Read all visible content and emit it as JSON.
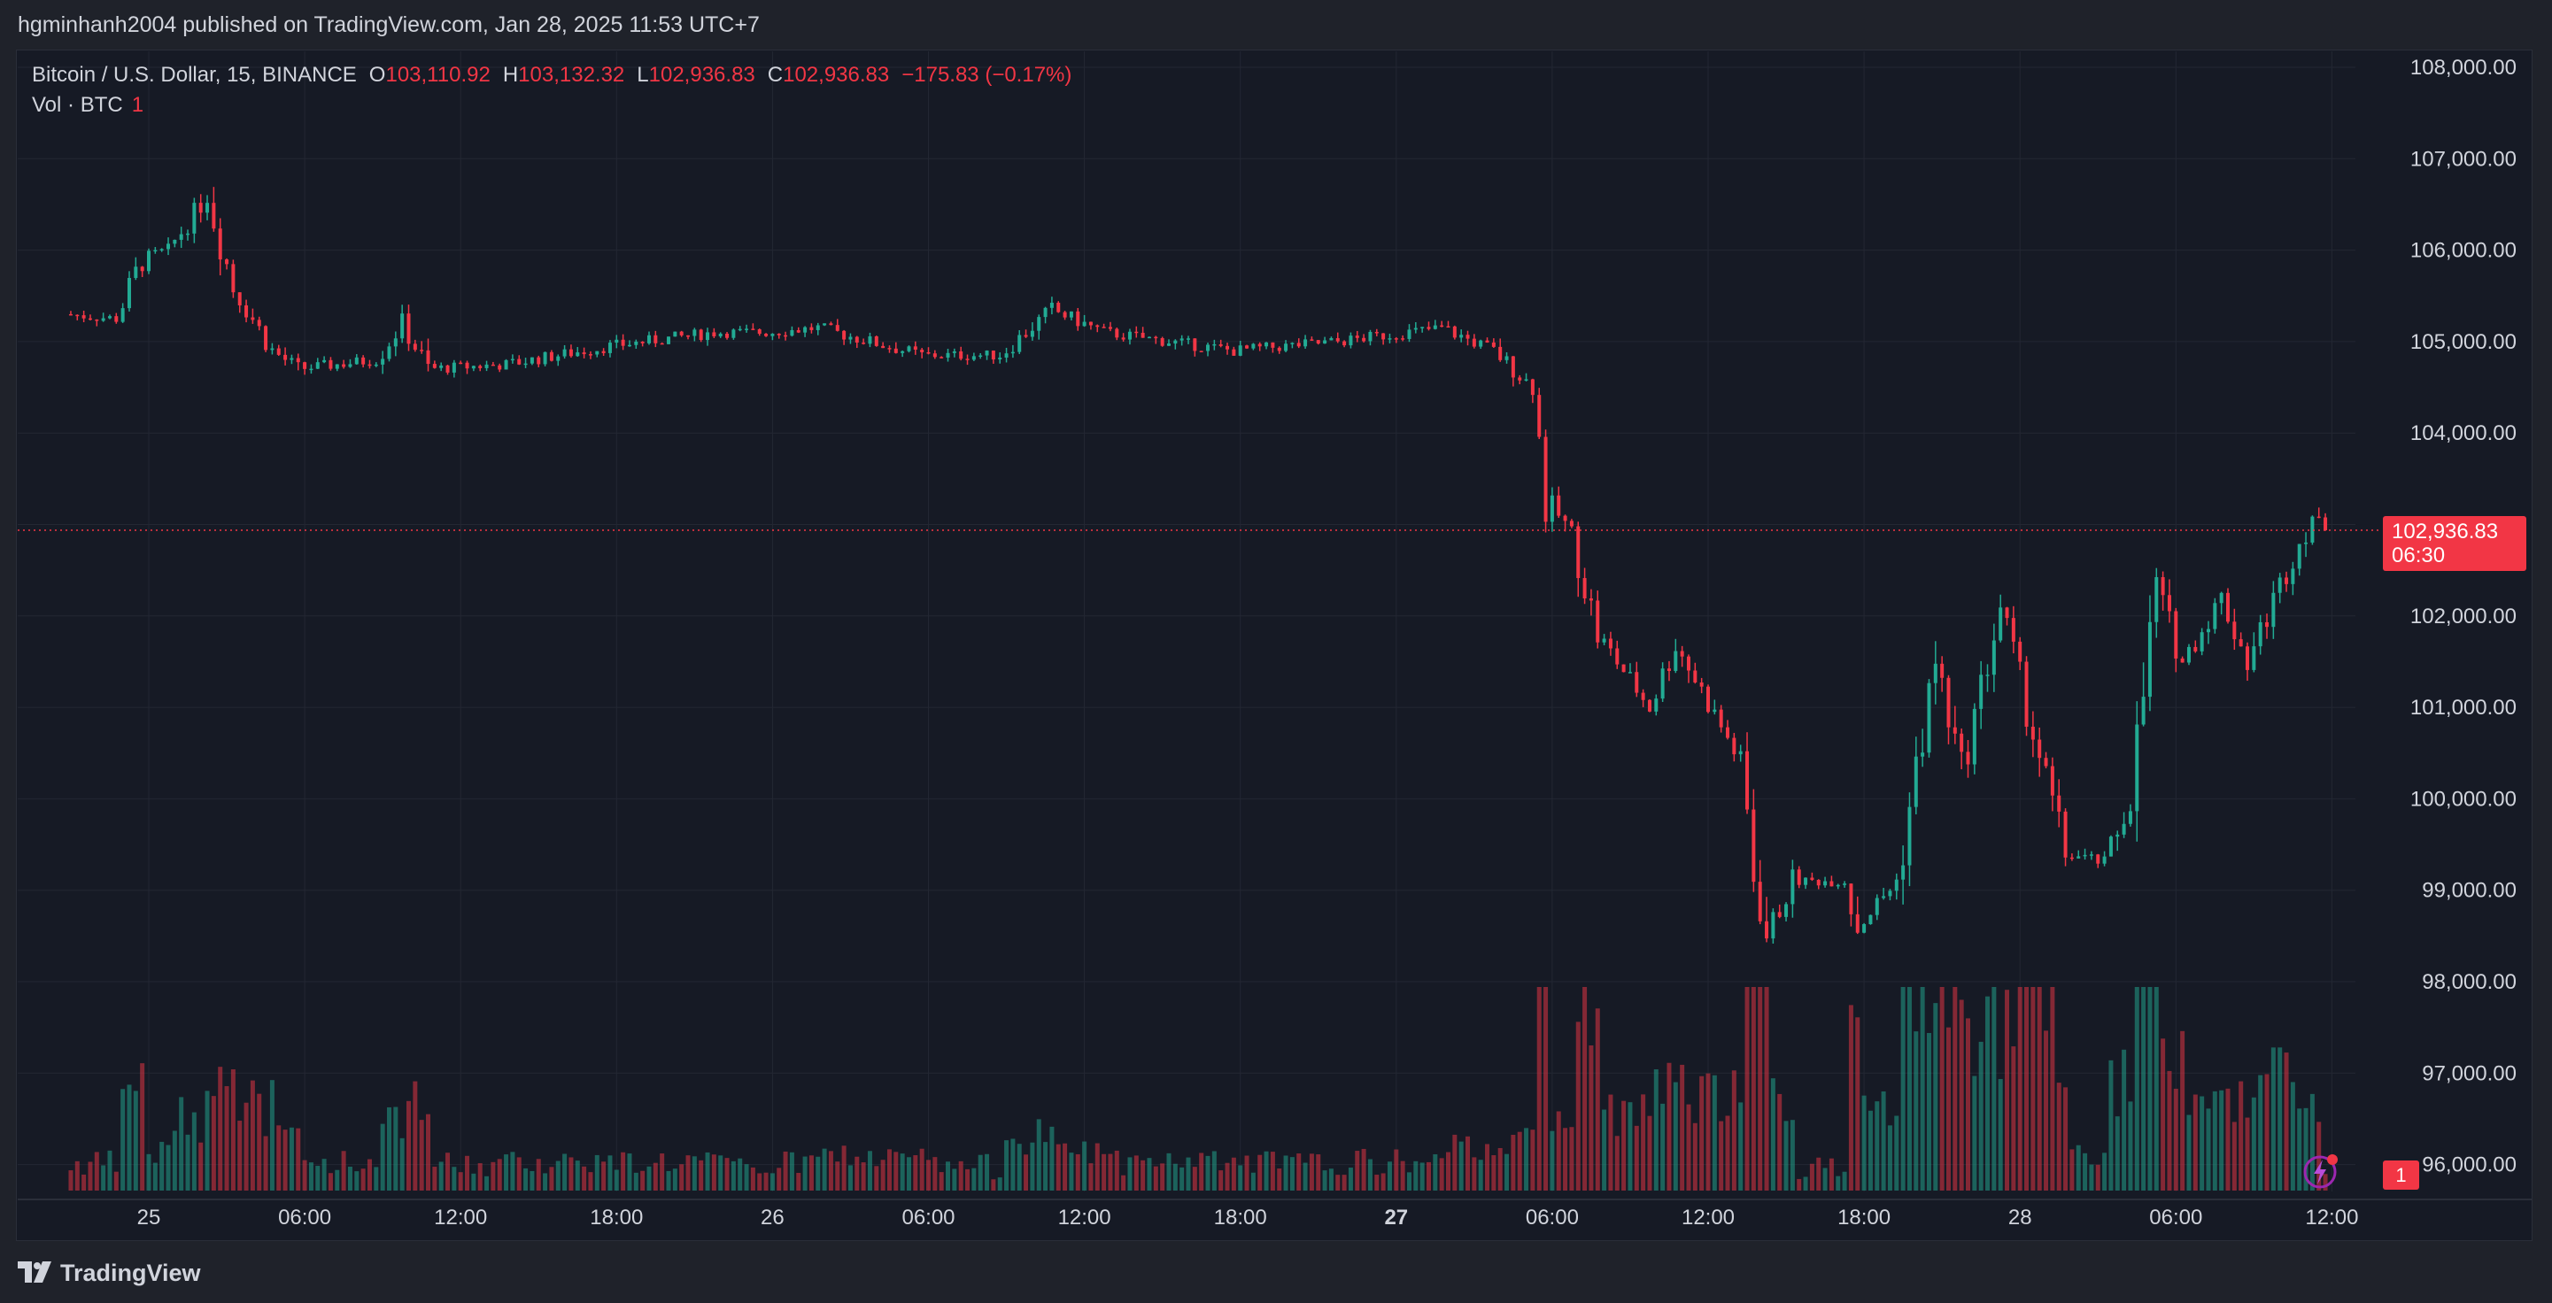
{
  "header": {
    "publish_line": "hgminhanh2004 published on TradingView.com, Jan 28, 2025 11:53 UTC+7"
  },
  "legend": {
    "symbol": "Bitcoin / U.S. Dollar, 15, BINANCE",
    "open_label": "O",
    "open": "103,110.92",
    "high_label": "H",
    "high": "103,132.32",
    "low_label": "L",
    "low": "102,936.83",
    "close_label": "C",
    "close": "102,936.83",
    "change": "−175.83 (−0.17%)",
    "vol_label": "Vol · BTC",
    "vol_value": "1"
  },
  "price_tag": {
    "price": "102,936.83",
    "countdown": "06:30"
  },
  "volume_tag": "1",
  "brand": {
    "name": "TradingView"
  },
  "colors": {
    "up": "#22ab94",
    "down": "#f23645",
    "background": "#161a25",
    "grid": "#2a2e39",
    "text": "#d1d4dc"
  },
  "chart_data": {
    "type": "candlestick",
    "symbol": "BTCUSD",
    "interval": "15",
    "y_axis": {
      "ticks": [
        "108,000.00",
        "107,000.00",
        "106,000.00",
        "105,000.00",
        "104,000.00",
        "102,000.00",
        "101,000.00",
        "100,000.00",
        "99,000.00",
        "98,000.00",
        "97,000.00",
        "96,000.00"
      ],
      "range": [
        95700,
        108300
      ]
    },
    "x_axis": {
      "ticks": [
        "25",
        "06:00",
        "12:00",
        "18:00",
        "26",
        "06:00",
        "12:00",
        "18:00",
        "27",
        "06:00",
        "12:00",
        "18:00",
        "28",
        "06:00",
        "12:00"
      ],
      "bold_ticks": [
        "27"
      ],
      "range": [
        "2025-01-24 21:00",
        "2025-01-28 13:00"
      ]
    },
    "last_price": 102936.83,
    "price_path": [
      {
        "t": "2025-01-24 21:00",
        "p": 105300
      },
      {
        "t": "2025-01-24 23:00",
        "p": 105250
      },
      {
        "t": "2025-01-25 00:00",
        "p": 105900
      },
      {
        "t": "2025-01-25 01:00",
        "p": 106000
      },
      {
        "t": "2025-01-25 02:30",
        "p": 106600
      },
      {
        "t": "2025-01-25 03:30",
        "p": 105600
      },
      {
        "t": "2025-01-25 05:00",
        "p": 104900
      },
      {
        "t": "2025-01-25 06:00",
        "p": 104700
      },
      {
        "t": "2025-01-25 09:00",
        "p": 104800
      },
      {
        "t": "2025-01-25 10:00",
        "p": 105200
      },
      {
        "t": "2025-01-25 11:00",
        "p": 104700
      },
      {
        "t": "2025-01-25 14:00",
        "p": 104750
      },
      {
        "t": "2025-01-25 18:00",
        "p": 104950
      },
      {
        "t": "2025-01-25 22:00",
        "p": 105100
      },
      {
        "t": "2025-01-26 00:00",
        "p": 105100
      },
      {
        "t": "2025-01-26 02:00",
        "p": 105150
      },
      {
        "t": "2025-01-26 06:00",
        "p": 104850
      },
      {
        "t": "2025-01-26 09:00",
        "p": 104850
      },
      {
        "t": "2025-01-26 11:00",
        "p": 105350
      },
      {
        "t": "2025-01-26 13:00",
        "p": 105100
      },
      {
        "t": "2025-01-26 18:00",
        "p": 104900
      },
      {
        "t": "2025-01-26 22:00",
        "p": 105000
      },
      {
        "t": "2025-01-27 02:00",
        "p": 105150
      },
      {
        "t": "2025-01-27 04:00",
        "p": 104900
      },
      {
        "t": "2025-01-27 05:30",
        "p": 104500
      },
      {
        "t": "2025-01-27 06:00",
        "p": 103300
      },
      {
        "t": "2025-01-27 07:00",
        "p": 102900
      },
      {
        "t": "2025-01-27 08:00",
        "p": 101800
      },
      {
        "t": "2025-01-27 10:00",
        "p": 101000
      },
      {
        "t": "2025-01-27 11:00",
        "p": 101700
      },
      {
        "t": "2025-01-27 13:30",
        "p": 100400
      },
      {
        "t": "2025-01-27 14:00",
        "p": 99200
      },
      {
        "t": "2025-01-27 14:30",
        "p": 98500
      },
      {
        "t": "2025-01-27 15:30",
        "p": 99100
      },
      {
        "t": "2025-01-27 17:30",
        "p": 99100
      },
      {
        "t": "2025-01-27 18:00",
        "p": 98600
      },
      {
        "t": "2025-01-27 19:30",
        "p": 99100
      },
      {
        "t": "2025-01-27 21:00",
        "p": 101500
      },
      {
        "t": "2025-01-27 22:00",
        "p": 100300
      },
      {
        "t": "2025-01-27 23:30",
        "p": 102100
      },
      {
        "t": "2025-01-28 00:30",
        "p": 101000
      },
      {
        "t": "2025-01-28 02:00",
        "p": 99400
      },
      {
        "t": "2025-01-28 03:30",
        "p": 99300
      },
      {
        "t": "2025-01-28 04:30",
        "p": 100000
      },
      {
        "t": "2025-01-28 05:30",
        "p": 102300
      },
      {
        "t": "2025-01-28 06:30",
        "p": 101500
      },
      {
        "t": "2025-01-28 08:00",
        "p": 102200
      },
      {
        "t": "2025-01-28 09:00",
        "p": 101500
      },
      {
        "t": "2025-01-28 10:30",
        "p": 102500
      },
      {
        "t": "2025-01-28 11:30",
        "p": 103100
      },
      {
        "t": "2025-01-28 11:45",
        "p": 102936.83
      }
    ]
  }
}
